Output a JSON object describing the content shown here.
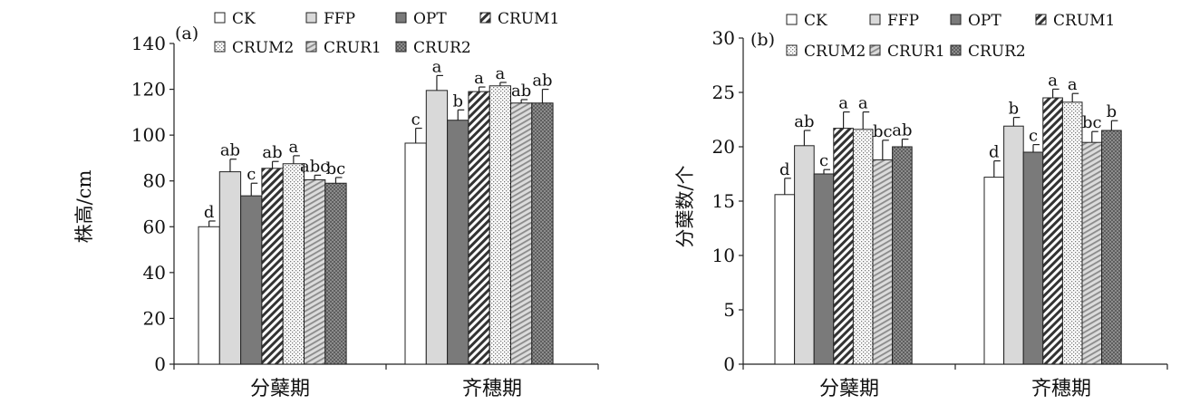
{
  "chart_data": [
    {
      "type": "bar",
      "panel_label": "(a)",
      "ylabel": "株高/cm",
      "ylim": [
        0,
        140
      ],
      "yticks": [
        "0",
        "20",
        "40",
        "60",
        "80",
        "100",
        "120",
        "140"
      ],
      "categories": [
        "分蘖期",
        "齐穗期"
      ],
      "series": [
        {
          "name": "CK",
          "values": [
            60,
            96.5
          ],
          "errors": [
            2.5,
            6.5
          ],
          "letters": [
            "d",
            "c"
          ]
        },
        {
          "name": "FFP",
          "values": [
            84,
            119.5
          ],
          "errors": [
            5.5,
            6.5
          ],
          "letters": [
            "ab",
            "a"
          ]
        },
        {
          "name": "OPT",
          "values": [
            73.5,
            106.5
          ],
          "errors": [
            5.5,
            4.5
          ],
          "letters": [
            "c",
            "b"
          ]
        },
        {
          "name": "CRUM1",
          "values": [
            85.5,
            119
          ],
          "errors": [
            3,
            2
          ],
          "letters": [
            "ab",
            "a"
          ]
        },
        {
          "name": "CRUM2",
          "values": [
            87.5,
            121.5
          ],
          "errors": [
            3.5,
            1.5
          ],
          "letters": [
            "a",
            "a"
          ]
        },
        {
          "name": "CRUR1",
          "values": [
            80.5,
            114
          ],
          "errors": [
            2,
            1.5
          ],
          "letters": [
            "abc",
            "ab"
          ]
        },
        {
          "name": "CRUR2",
          "values": [
            79,
            114
          ],
          "errors": [
            2.5,
            6
          ],
          "letters": [
            "bc",
            "ab"
          ]
        }
      ],
      "legend_position": "top"
    },
    {
      "type": "bar",
      "panel_label": "(b)",
      "ylabel": "分蘖数/个",
      "ylim": [
        0,
        30
      ],
      "yticks": [
        "0",
        "5",
        "10",
        "15",
        "20",
        "25",
        "30"
      ],
      "categories": [
        "分蘖期",
        "齐穗期"
      ],
      "series": [
        {
          "name": "CK",
          "values": [
            15.6,
            17.2
          ],
          "errors": [
            1.5,
            1.5
          ],
          "letters": [
            "d",
            "d"
          ]
        },
        {
          "name": "FFP",
          "values": [
            20.1,
            21.9
          ],
          "errors": [
            1.4,
            0.8
          ],
          "letters": [
            "ab",
            "b"
          ]
        },
        {
          "name": "OPT",
          "values": [
            17.5,
            19.5
          ],
          "errors": [
            0.4,
            0.7
          ],
          "letters": [
            "c",
            "c"
          ]
        },
        {
          "name": "CRUM1",
          "values": [
            21.7,
            24.5
          ],
          "errors": [
            1.5,
            0.8
          ],
          "letters": [
            "a",
            "a"
          ]
        },
        {
          "name": "CRUM2",
          "values": [
            21.6,
            24.1
          ],
          "errors": [
            1.6,
            0.8
          ],
          "letters": [
            "a",
            "a"
          ]
        },
        {
          "name": "CRUR1",
          "values": [
            18.8,
            20.4
          ],
          "errors": [
            1.8,
            1.0
          ],
          "letters": [
            "bc",
            "bc"
          ]
        },
        {
          "name": "CRUR2",
          "values": [
            20.0,
            21.5
          ],
          "errors": [
            0.7,
            0.9
          ],
          "letters": [
            "ab",
            "b"
          ]
        }
      ],
      "legend_position": "top"
    }
  ]
}
